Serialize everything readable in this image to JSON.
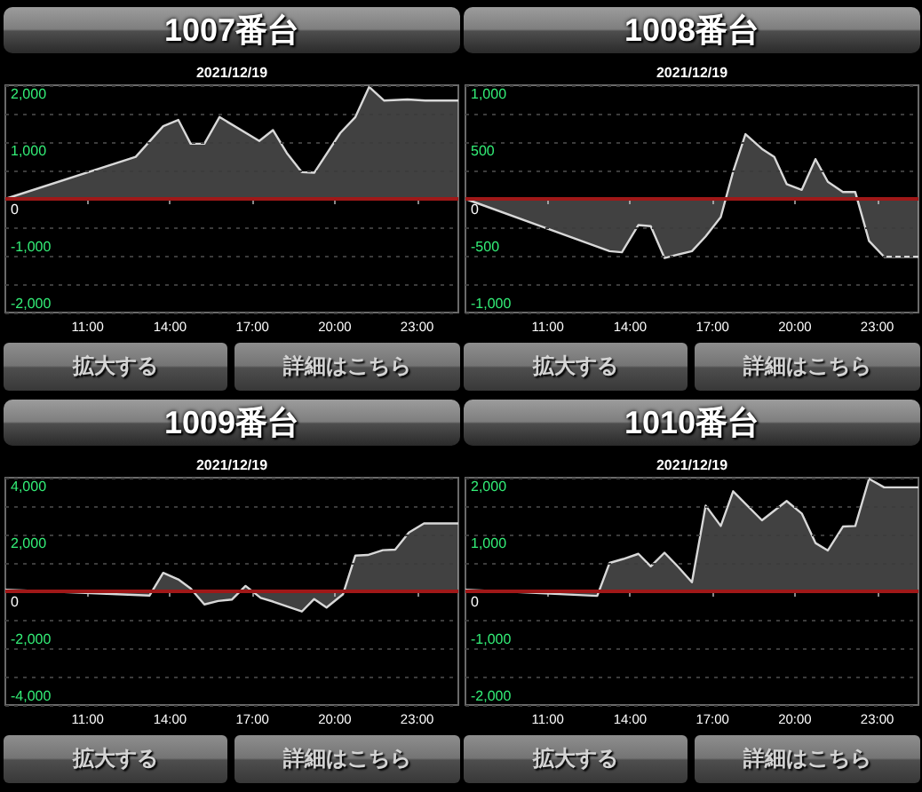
{
  "chart_data": [
    {
      "type": "area",
      "title": "1007番台",
      "subtitle": "2021/12/19",
      "x": [
        8,
        12.75,
        13.75,
        14.3,
        14.75,
        15.25,
        15.8,
        17.25,
        17.75,
        18.25,
        18.8,
        19.25,
        20.2,
        20.75,
        21.25,
        21.8,
        22.65,
        23.3,
        24.5
      ],
      "values": [
        0,
        740,
        1280,
        1390,
        970,
        970,
        1440,
        1020,
        1210,
        810,
        470,
        460,
        1160,
        1440,
        1970,
        1730,
        1750,
        1730,
        1730
      ],
      "color": "#d8d8d8",
      "xlim": [
        8,
        24.5
      ],
      "xticks": [
        {
          "value": 11,
          "label": "11:00"
        },
        {
          "value": 14,
          "label": "14:00"
        },
        {
          "value": 17,
          "label": "17:00"
        },
        {
          "value": 20,
          "label": "20:00"
        },
        {
          "value": 23,
          "label": "23:00"
        }
      ],
      "ylim": [
        -2000,
        2000
      ],
      "yticks": [
        {
          "value": -2000,
          "label": "-2,000"
        },
        {
          "value": -1500,
          "label": null
        },
        {
          "value": -1000,
          "label": "-1,000"
        },
        {
          "value": -500,
          "label": null
        },
        0,
        {
          "value": 500,
          "label": null
        },
        {
          "value": 1000,
          "label": "1,000"
        },
        {
          "value": 1500,
          "label": null
        },
        {
          "value": 2000,
          "label": "2,000"
        }
      ],
      "grid": "y",
      "ref_lines": [
        {
          "axis": "y",
          "value": 0,
          "color": "#a01818"
        }
      ],
      "annotations": [
        "拡大する",
        "詳細はこちら"
      ]
    },
    {
      "type": "area",
      "title": "1008番台",
      "subtitle": "2021/12/19",
      "x": [
        8,
        13.25,
        13.7,
        14.3,
        14.75,
        15.25,
        16.25,
        16.75,
        17.3,
        17.75,
        18.2,
        18.8,
        19.25,
        19.7,
        20.25,
        20.75,
        21.2,
        21.75,
        22.2,
        22.7,
        23.25,
        24.5
      ],
      "values": [
        0,
        -460,
        -470,
        -230,
        -240,
        -520,
        -460,
        -330,
        -160,
        240,
        570,
        440,
        370,
        130,
        80,
        350,
        150,
        60,
        60,
        -370,
        -510,
        -510
      ],
      "color": "#d8d8d8",
      "xlim": [
        8,
        24.5
      ],
      "xticks": [
        {
          "value": 11,
          "label": "11:00"
        },
        {
          "value": 14,
          "label": "14:00"
        },
        {
          "value": 17,
          "label": "17:00"
        },
        {
          "value": 20,
          "label": "20:00"
        },
        {
          "value": 23,
          "label": "23:00"
        }
      ],
      "ylim": [
        -1000,
        1000
      ],
      "yticks": [
        {
          "value": -1000,
          "label": "-1,000"
        },
        {
          "value": -750,
          "label": null
        },
        -500,
        {
          "value": -250,
          "label": null
        },
        0,
        {
          "value": 250,
          "label": null
        },
        500,
        {
          "value": 750,
          "label": null
        },
        {
          "value": 1000,
          "label": "1,000"
        }
      ],
      "grid": "y",
      "ref_lines": [
        {
          "axis": "y",
          "value": 0,
          "color": "#a01818"
        }
      ],
      "annotations": [
        "拡大する",
        "詳細はこちら"
      ]
    },
    {
      "type": "area",
      "title": "1009番台",
      "subtitle": "2021/12/19",
      "x": [
        8,
        13.25,
        13.75,
        14.3,
        14.75,
        15.25,
        15.75,
        16.25,
        16.75,
        17.3,
        17.75,
        18.8,
        19.25,
        19.7,
        20.3,
        20.75,
        21.2,
        21.75,
        22.2,
        22.7,
        23.25,
        24.5
      ],
      "values": [
        60,
        -150,
        650,
        420,
        100,
        -460,
        -340,
        -290,
        190,
        -230,
        -360,
        -710,
        -270,
        -570,
        -100,
        1260,
        1280,
        1450,
        1470,
        2070,
        2390,
        2390
      ],
      "color": "#d8d8d8",
      "xlim": [
        8,
        24.5
      ],
      "xticks": [
        {
          "value": 11,
          "label": "11:00"
        },
        {
          "value": 14,
          "label": "14:00"
        },
        {
          "value": 17,
          "label": "17:00"
        },
        {
          "value": 20,
          "label": "20:00"
        },
        {
          "value": 23,
          "label": "23:00"
        }
      ],
      "ylim": [
        -4000,
        4000
      ],
      "yticks": [
        {
          "value": -4000,
          "label": "-4,000"
        },
        {
          "value": -3000,
          "label": null
        },
        {
          "value": -2000,
          "label": "-2,000"
        },
        {
          "value": -1000,
          "label": null
        },
        0,
        {
          "value": 1000,
          "label": null
        },
        {
          "value": 2000,
          "label": "2,000"
        },
        {
          "value": 3000,
          "label": null
        },
        {
          "value": 4000,
          "label": "4,000"
        }
      ],
      "grid": "y",
      "ref_lines": [
        {
          "axis": "y",
          "value": 0,
          "color": "#a01818"
        }
      ],
      "annotations": [
        "拡大する",
        "詳細はこちら"
      ]
    },
    {
      "type": "area",
      "title": "1010番台",
      "subtitle": "2021/12/19",
      "x": [
        8,
        12.8,
        13.25,
        13.75,
        14.3,
        14.75,
        15.25,
        15.75,
        16.25,
        16.75,
        17.3,
        17.75,
        18.8,
        19.7,
        20.25,
        20.75,
        21.2,
        21.75,
        22.2,
        22.7,
        23.25,
        24.5
      ],
      "values": [
        30,
        -80,
        500,
        570,
        660,
        440,
        680,
        430,
        160,
        1510,
        1150,
        1760,
        1250,
        1590,
        1370,
        850,
        720,
        1140,
        1150,
        1980,
        1830,
        1830
      ],
      "color": "#d8d8d8",
      "xlim": [
        8,
        24.5
      ],
      "xticks": [
        {
          "value": 11,
          "label": "11:00"
        },
        {
          "value": 14,
          "label": "14:00"
        },
        {
          "value": 17,
          "label": "17:00"
        },
        {
          "value": 20,
          "label": "20:00"
        },
        {
          "value": 23,
          "label": "23:00"
        }
      ],
      "ylim": [
        -2000,
        2000
      ],
      "yticks": [
        {
          "value": -2000,
          "label": "-2,000"
        },
        {
          "value": -1500,
          "label": null
        },
        {
          "value": -1000,
          "label": "-1,000"
        },
        {
          "value": -500,
          "label": null
        },
        0,
        {
          "value": 500,
          "label": null
        },
        {
          "value": 1000,
          "label": "1,000"
        },
        {
          "value": 1500,
          "label": null
        },
        {
          "value": 2000,
          "label": "2,000"
        }
      ],
      "grid": "y",
      "ref_lines": [
        {
          "axis": "y",
          "value": 0,
          "color": "#a01818"
        }
      ],
      "annotations": [
        "拡大する",
        "詳細はこちら"
      ]
    }
  ]
}
